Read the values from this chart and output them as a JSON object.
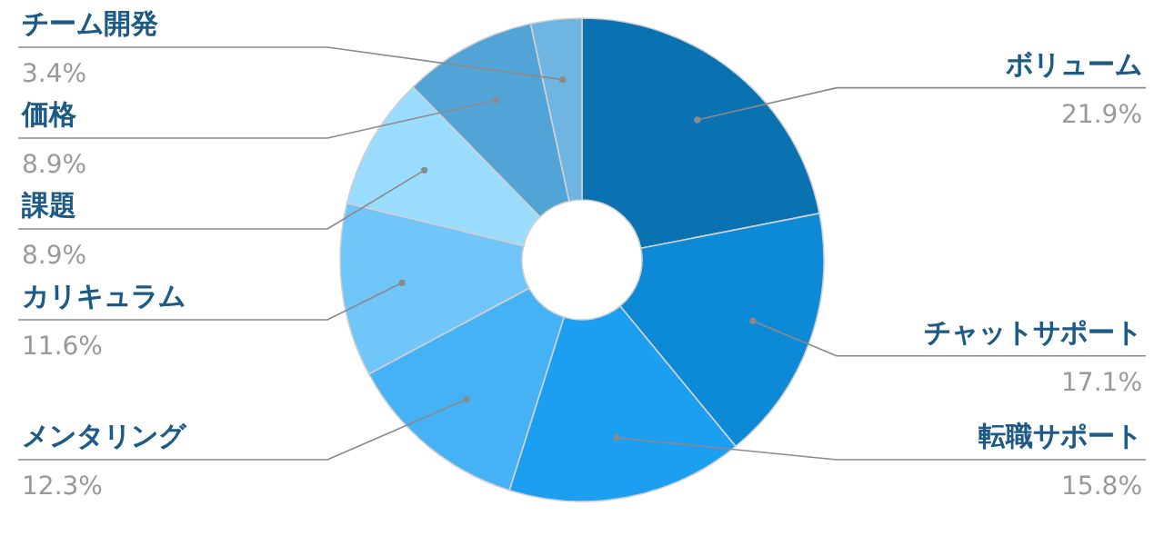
{
  "chart_data": {
    "type": "donut",
    "categories": [
      "ボリューム",
      "チャットサポート",
      "転職サポート",
      "メンタリング",
      "カリキュラム",
      "課題",
      "価格",
      "チーム開発"
    ],
    "values": [
      21.9,
      17.1,
      15.8,
      12.3,
      11.6,
      8.9,
      8.9,
      3.4
    ],
    "value_labels": [
      "21.9%",
      "17.1%",
      "15.8%",
      "12.3%",
      "11.6%",
      "8.9%",
      "8.9%",
      "3.4%"
    ],
    "colors": [
      "#0a72b0",
      "#0c8ad6",
      "#1c9ff0",
      "#45b2f6",
      "#70c6f8",
      "#9adcfd",
      "#53a4d6",
      "#6eb6e1"
    ]
  }
}
